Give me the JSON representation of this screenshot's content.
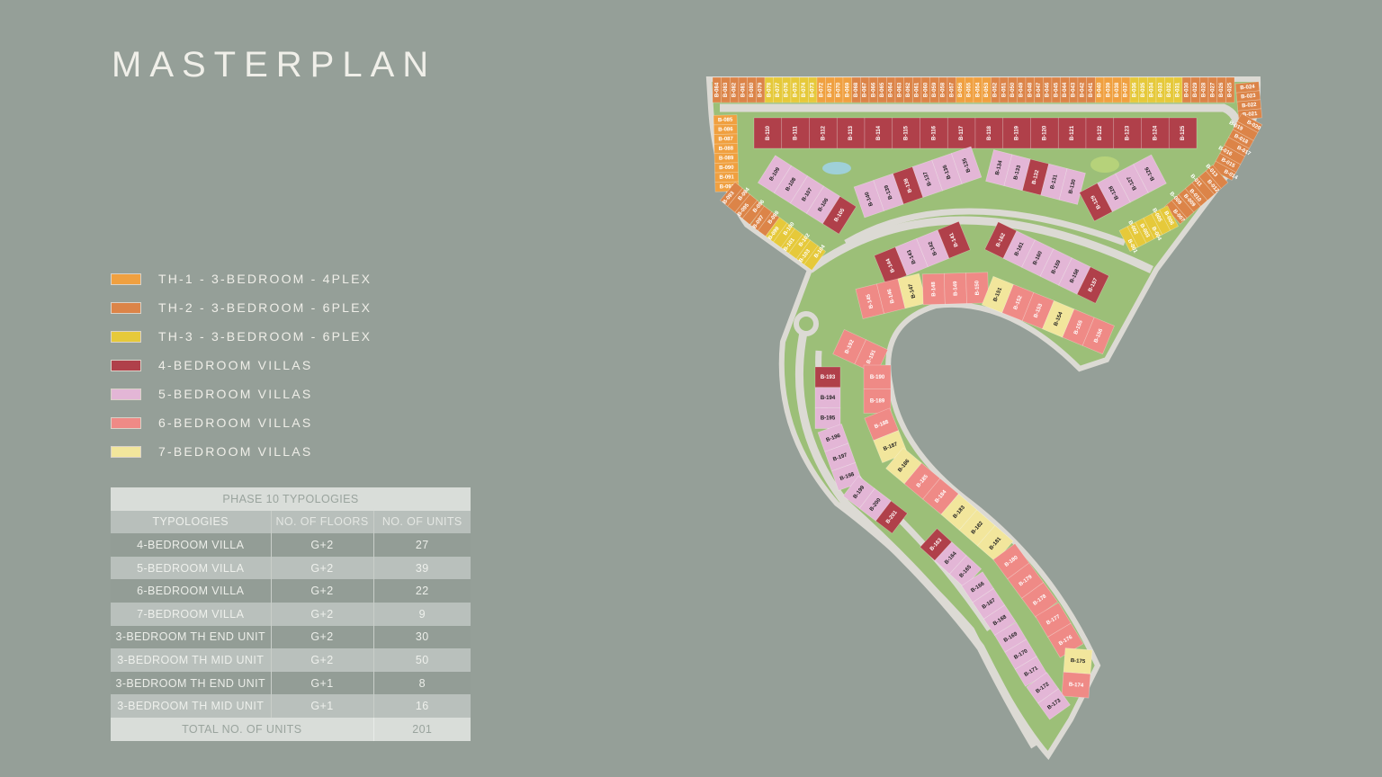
{
  "title": "MASTERPLAN",
  "colors": {
    "background": "#959f98",
    "th1": "#f0a040",
    "th2": "#dc8448",
    "th3": "#e6c93a",
    "v4": "#b0404a",
    "v5": "#e3b6d6",
    "v6": "#ef8a86",
    "v7": "#f2e69c",
    "road": "#dcdad4",
    "green": "#8eb76a"
  },
  "legend": [
    {
      "label": "TH-1 - 3-BEDROOM - 4PLEX",
      "color": "#f0a040"
    },
    {
      "label": "TH-2 - 3-BEDROOM - 6PLEX",
      "color": "#dc8448"
    },
    {
      "label": "TH-3 - 3-BEDROOM - 6PLEX",
      "color": "#e6c93a"
    },
    {
      "label": "4-BEDROOM VILLAS",
      "color": "#b0404a"
    },
    {
      "label": "5-BEDROOM VILLAS",
      "color": "#e3b6d6"
    },
    {
      "label": "6-BEDROOM VILLAS",
      "color": "#ef8a86"
    },
    {
      "label": "7-BEDROOM VILLAS",
      "color": "#f2e69c"
    }
  ],
  "table": {
    "title": "PHASE 10 TYPOLOGIES",
    "headers": [
      "TYPOLOGIES",
      "NO. OF FLOORS",
      "NO. OF UNITS"
    ],
    "rows": [
      [
        "4-BEDROOM VILLA",
        "G+2",
        "27"
      ],
      [
        "5-BEDROOM VILLA",
        "G+2",
        "39"
      ],
      [
        "6-BEDROOM VILLA",
        "G+2",
        "22"
      ],
      [
        "7-BEDROOM VILLA",
        "G+2",
        "9"
      ],
      [
        "3-BEDROOM TH END UNIT",
        "G+2",
        "30"
      ],
      [
        "3-BEDROOM TH MID UNIT",
        "G+2",
        "50"
      ],
      [
        "3-BEDROOM TH END UNIT",
        "G+1",
        "8"
      ],
      [
        "3-BEDROOM TH MID UNIT",
        "G+1",
        "16"
      ]
    ],
    "total_label": "TOTAL NO. OF UNITS",
    "total_value": "201"
  },
  "map": {
    "strips": [
      {
        "id": "top-townhouses",
        "plots": [
          [
            "B-084",
            "th2"
          ],
          [
            "B-083",
            "th2"
          ],
          [
            "B-082",
            "th2"
          ],
          [
            "B-081",
            "th2"
          ],
          [
            "B-080",
            "th2"
          ],
          [
            "B-079",
            "th2"
          ],
          [
            "B-078",
            "th3"
          ],
          [
            "B-077",
            "th3"
          ],
          [
            "B-076",
            "th3"
          ],
          [
            "B-075",
            "th3"
          ],
          [
            "B-074",
            "th3"
          ],
          [
            "B-073",
            "th3"
          ],
          [
            "B-072",
            "th1"
          ],
          [
            "B-071",
            "th1"
          ],
          [
            "B-070",
            "th1"
          ],
          [
            "B-069",
            "th1"
          ],
          [
            "B-068",
            "th2"
          ],
          [
            "B-067",
            "th2"
          ],
          [
            "B-066",
            "th2"
          ],
          [
            "B-065",
            "th2"
          ],
          [
            "B-064",
            "th2"
          ],
          [
            "B-063",
            "th2"
          ],
          [
            "B-062",
            "th2"
          ],
          [
            "B-061",
            "th2"
          ],
          [
            "B-060",
            "th2"
          ],
          [
            "B-059",
            "th2"
          ],
          [
            "B-058",
            "th2"
          ],
          [
            "B-057",
            "th2"
          ],
          [
            "B-056",
            "th1"
          ],
          [
            "B-055",
            "th1"
          ],
          [
            "B-054",
            "th1"
          ],
          [
            "B-053",
            "th1"
          ],
          [
            "B-052",
            "th2"
          ],
          [
            "B-051",
            "th2"
          ],
          [
            "B-050",
            "th2"
          ],
          [
            "B-049",
            "th2"
          ],
          [
            "B-048",
            "th2"
          ],
          [
            "B-047",
            "th2"
          ],
          [
            "B-046",
            "th2"
          ],
          [
            "B-045",
            "th2"
          ],
          [
            "B-044",
            "th2"
          ],
          [
            "B-043",
            "th2"
          ],
          [
            "B-042",
            "th2"
          ],
          [
            "B-041",
            "th2"
          ],
          [
            "B-040",
            "th1"
          ],
          [
            "B-039",
            "th1"
          ],
          [
            "B-038",
            "th1"
          ],
          [
            "B-037",
            "th1"
          ],
          [
            "B-036",
            "th3"
          ],
          [
            "B-035",
            "th3"
          ],
          [
            "B-034",
            "th3"
          ],
          [
            "B-033",
            "th3"
          ],
          [
            "B-032",
            "th3"
          ],
          [
            "B-031",
            "th3"
          ],
          [
            "B-030",
            "th2"
          ],
          [
            "B-029",
            "th2"
          ],
          [
            "B-028",
            "th2"
          ],
          [
            "B-027",
            "th2"
          ],
          [
            "B-026",
            "th2"
          ],
          [
            "B-025",
            "th2"
          ]
        ]
      },
      {
        "id": "right-townhouses",
        "plots": [
          [
            "B-024",
            "th2"
          ],
          [
            "B-023",
            "th2"
          ],
          [
            "B-022",
            "th2"
          ],
          [
            "B-021",
            "th2"
          ],
          [
            "B-020",
            "th2"
          ],
          [
            "B-019",
            "th2"
          ],
          [
            "B-018",
            "th2"
          ],
          [
            "B-017",
            "th2"
          ],
          [
            "B-016",
            "th2"
          ],
          [
            "B-015",
            "th2"
          ],
          [
            "B-014",
            "th2"
          ],
          [
            "B-013",
            "th2"
          ],
          [
            "B-012",
            "th2"
          ],
          [
            "B-011",
            "th2"
          ],
          [
            "B-010",
            "th2"
          ],
          [
            "B-009",
            "th2"
          ],
          [
            "B-008",
            "th2"
          ],
          [
            "B-007",
            "th2"
          ],
          [
            "B-006",
            "th3"
          ],
          [
            "B-005",
            "th3"
          ],
          [
            "B-004",
            "th3"
          ],
          [
            "B-003",
            "th3"
          ],
          [
            "B-002",
            "th3"
          ],
          [
            "B-001",
            "th3"
          ]
        ]
      },
      {
        "id": "left-townhouses",
        "plots": [
          [
            "B-085",
            "th1"
          ],
          [
            "B-086",
            "th1"
          ],
          [
            "B-087",
            "th1"
          ],
          [
            "B-088",
            "th1"
          ],
          [
            "B-089",
            "th1"
          ],
          [
            "B-090",
            "th1"
          ],
          [
            "B-091",
            "th1"
          ],
          [
            "B-092",
            "th1"
          ],
          [
            "B-093",
            "th2"
          ],
          [
            "B-094",
            "th2"
          ],
          [
            "B-095",
            "th2"
          ],
          [
            "B-096",
            "th2"
          ],
          [
            "B-097",
            "th2"
          ],
          [
            "B-098",
            "th2"
          ],
          [
            "B-099",
            "th3"
          ],
          [
            "B-100",
            "th3"
          ],
          [
            "B-101",
            "th3"
          ],
          [
            "B-102",
            "th3"
          ],
          [
            "B-103",
            "th3"
          ],
          [
            "B-104",
            "th3"
          ]
        ]
      },
      {
        "id": "top-villas",
        "plots": [
          [
            "B-110",
            "v4"
          ],
          [
            "B-111",
            "v4"
          ],
          [
            "B-112",
            "v4"
          ],
          [
            "B-113",
            "v4"
          ],
          [
            "B-114",
            "v4"
          ],
          [
            "B-115",
            "v4"
          ],
          [
            "B-116",
            "v4"
          ],
          [
            "B-117",
            "v4"
          ],
          [
            "B-118",
            "v4"
          ],
          [
            "B-119",
            "v4"
          ],
          [
            "B-120",
            "v4"
          ],
          [
            "B-121",
            "v4"
          ],
          [
            "B-122",
            "v4"
          ],
          [
            "B-123",
            "v4"
          ],
          [
            "B-124",
            "v4"
          ],
          [
            "B-125",
            "v4"
          ]
        ]
      },
      {
        "id": "second-row-west",
        "plots": [
          [
            "B-109",
            "v5"
          ],
          [
            "B-108",
            "v5"
          ],
          [
            "B-107",
            "v5"
          ],
          [
            "B-106",
            "v5"
          ],
          [
            "B-105",
            "v4"
          ]
        ]
      },
      {
        "id": "second-row-centre",
        "plots": [
          [
            "B-140",
            "v5"
          ],
          [
            "B-139",
            "v5"
          ],
          [
            "B-138",
            "v4"
          ],
          [
            "B-137",
            "v5"
          ],
          [
            "B-136",
            "v5"
          ],
          [
            "B-135",
            "v5"
          ]
        ]
      },
      {
        "id": "second-row-east",
        "plots": [
          [
            "B-134",
            "v5"
          ],
          [
            "B-133",
            "v5"
          ],
          [
            "B-132",
            "v4"
          ],
          [
            "B-131",
            "v5"
          ],
          [
            "B-130",
            "v5"
          ]
        ]
      },
      {
        "id": "second-row-far-east",
        "plots": [
          [
            "B-129",
            "v4"
          ],
          [
            "B-128",
            "v5"
          ],
          [
            "B-127",
            "v5"
          ],
          [
            "B-126",
            "v5"
          ]
        ]
      },
      {
        "id": "third-row-west",
        "plots": [
          [
            "B-144",
            "v4"
          ],
          [
            "B-143",
            "v5"
          ],
          [
            "B-142",
            "v5"
          ],
          [
            "B-141",
            "v4"
          ]
        ]
      },
      {
        "id": "third-row-east",
        "plots": [
          [
            "B-162",
            "v4"
          ],
          [
            "B-161",
            "v5"
          ],
          [
            "B-160",
            "v5"
          ],
          [
            "B-159",
            "v5"
          ],
          [
            "B-158",
            "v5"
          ],
          [
            "B-157",
            "v4"
          ]
        ]
      },
      {
        "id": "inner-ring",
        "plots": [
          [
            "B-145",
            "v6"
          ],
          [
            "B-146",
            "v6"
          ],
          [
            "B-147",
            "v7"
          ],
          [
            "B-148",
            "v6"
          ],
          [
            "B-149",
            "v6"
          ],
          [
            "B-150",
            "v6"
          ],
          [
            "B-151",
            "v7"
          ],
          [
            "B-152",
            "v6"
          ],
          [
            "B-153",
            "v6"
          ],
          [
            "B-154",
            "v7"
          ],
          [
            "B-155",
            "v6"
          ],
          [
            "B-156",
            "v6"
          ]
        ]
      },
      {
        "id": "snake-west",
        "plots": [
          [
            "B-193",
            "v4"
          ],
          [
            "B-194",
            "v5"
          ],
          [
            "B-195",
            "v5"
          ],
          [
            "B-196",
            "v5"
          ],
          [
            "B-197",
            "v5"
          ],
          [
            "B-198",
            "v5"
          ],
          [
            "B-199",
            "v5"
          ],
          [
            "B-200",
            "v5"
          ],
          [
            "B-201",
            "v4"
          ]
        ]
      },
      {
        "id": "snake-inner",
        "plots": [
          [
            "B-192",
            "v6"
          ],
          [
            "B-191",
            "v6"
          ],
          [
            "B-190",
            "v6"
          ],
          [
            "B-189",
            "v6"
          ],
          [
            "B-188",
            "v6"
          ],
          [
            "B-187",
            "v7"
          ],
          [
            "B-186",
            "v7"
          ],
          [
            "B-185",
            "v6"
          ],
          [
            "B-184",
            "v6"
          ],
          [
            "B-183",
            "v7"
          ],
          [
            "B-182",
            "v7"
          ],
          [
            "B-181",
            "v7"
          ],
          [
            "B-180",
            "v6"
          ],
          [
            "B-179",
            "v6"
          ],
          [
            "B-178",
            "v6"
          ],
          [
            "B-177",
            "v6"
          ],
          [
            "B-176",
            "v6"
          ],
          [
            "B-175",
            "v7"
          ],
          [
            "B-174",
            "v6"
          ]
        ]
      },
      {
        "id": "snake-south",
        "plots": [
          [
            "B-163",
            "v4"
          ],
          [
            "B-164",
            "v5"
          ],
          [
            "B-165",
            "v5"
          ],
          [
            "B-166",
            "v5"
          ],
          [
            "B-167",
            "v5"
          ],
          [
            "B-168",
            "v5"
          ],
          [
            "B-169",
            "v5"
          ],
          [
            "B-170",
            "v5"
          ],
          [
            "B-171",
            "v5"
          ],
          [
            "B-172",
            "v5"
          ],
          [
            "B-173",
            "v5"
          ]
        ]
      }
    ]
  }
}
